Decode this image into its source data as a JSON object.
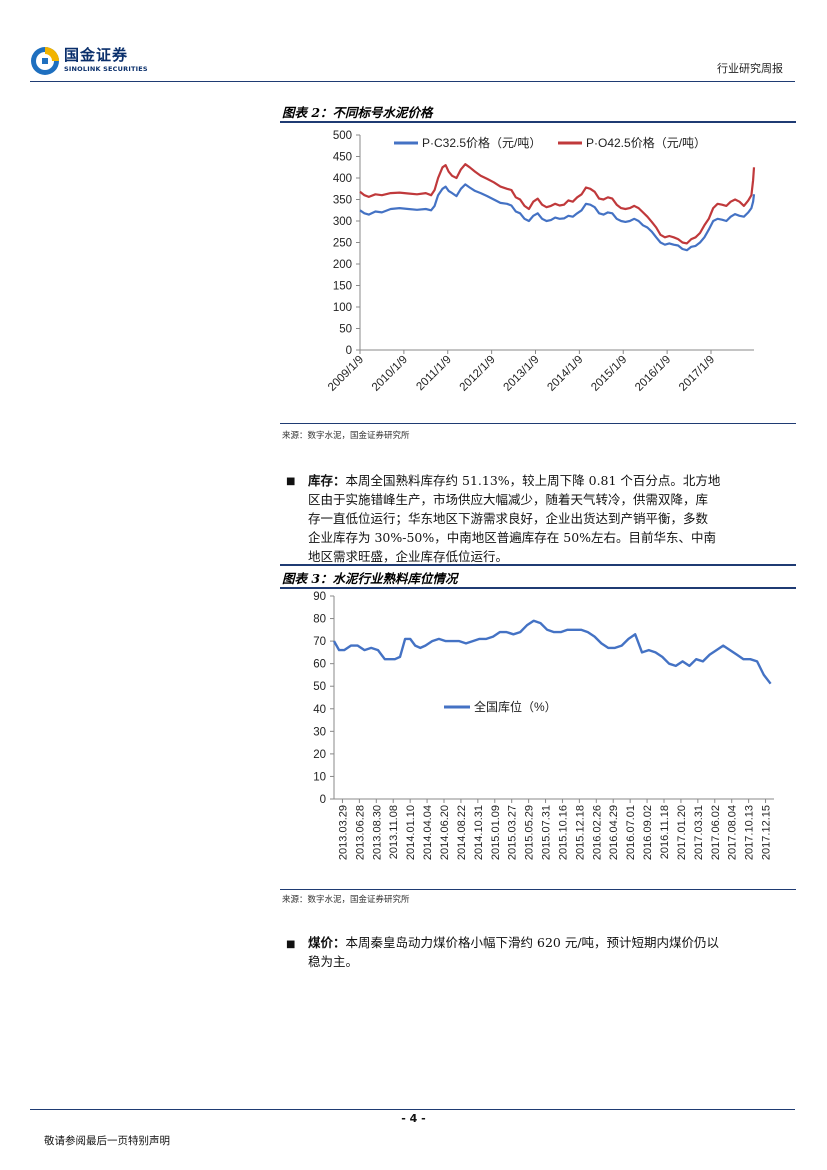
{
  "header": {
    "logo_cn": "国金证券",
    "logo_en": "SINOLINK SECURITIES",
    "report_type": "行业研究周报"
  },
  "figure2": {
    "title": "图表 2：不同标号水泥价格",
    "source": "来源：数字水泥，国金证券研究所"
  },
  "figure3": {
    "title": "图表 3：水泥行业熟料库位情况",
    "source": "来源：数字水泥，国金证券研究所"
  },
  "paragraphs": {
    "inventory_label": "库存：",
    "inventory_lines": [
      "本周全国熟料库存约 51.13%，较上周下降 0.81 个百分点。北方地",
      "区由于实施错峰生产，市场供应大幅减少，随着天气转冷，供需双降，库",
      "存一直低位运行；华东地区下游需求良好，企业出货达到产销平衡，多数",
      "企业库存为 30%-50%，中南地区普遍库存在 50%左右。目前华东、中南",
      "地区需求旺盛，企业库存低位运行。"
    ],
    "coal_label": "煤价：",
    "coal_lines": [
      "本周秦皇岛动力煤价格小幅下滑约 620 元/吨，预计短期内煤价仍以",
      "稳为主。"
    ]
  },
  "footer": {
    "page": "- 4 -",
    "note": "敬请参阅最后一页特别声明"
  },
  "chart_data": [
    {
      "type": "line",
      "title": "不同标号水泥价格",
      "x_tick_labels": [
        "2009/1/9",
        "2010/1/9",
        "2011/1/9",
        "2012/1/9",
        "2013/1/9",
        "2014/1/9",
        "2015/1/9",
        "2016/1/9",
        "2017/1/9"
      ],
      "x_range": [
        2009.0,
        2017.98
      ],
      "ylim": [
        0,
        500
      ],
      "y_ticks": [
        0,
        50,
        100,
        150,
        200,
        250,
        300,
        350,
        400,
        450,
        500
      ],
      "legend_position": "top",
      "series": [
        {
          "name": "P·C32.5价格（元/吨）",
          "color": "#4472c4",
          "x": [
            2009.0,
            2009.1,
            2009.2,
            2009.35,
            2009.5,
            2009.7,
            2009.9,
            2010.1,
            2010.3,
            2010.5,
            2010.62,
            2010.7,
            2010.78,
            2010.88,
            2010.95,
            2011.02,
            2011.1,
            2011.2,
            2011.3,
            2011.4,
            2011.5,
            2011.62,
            2011.75,
            2011.9,
            2012.05,
            2012.2,
            2012.35,
            2012.45,
            2012.55,
            2012.65,
            2012.75,
            2012.85,
            2012.95,
            2013.05,
            2013.15,
            2013.25,
            2013.35,
            2013.45,
            2013.55,
            2013.65,
            2013.75,
            2013.85,
            2013.95,
            2014.05,
            2014.15,
            2014.25,
            2014.35,
            2014.45,
            2014.55,
            2014.65,
            2014.75,
            2014.85,
            2014.95,
            2015.05,
            2015.15,
            2015.25,
            2015.35,
            2015.45,
            2015.55,
            2015.65,
            2015.75,
            2015.85,
            2015.95,
            2016.05,
            2016.15,
            2016.25,
            2016.35,
            2016.45,
            2016.55,
            2016.65,
            2016.75,
            2016.85,
            2016.95,
            2017.05,
            2017.15,
            2017.25,
            2017.35,
            2017.45,
            2017.55,
            2017.65,
            2017.75,
            2017.85,
            2017.92,
            2017.96,
            2017.98
          ],
          "values": [
            325,
            318,
            315,
            322,
            320,
            328,
            330,
            328,
            326,
            328,
            325,
            335,
            360,
            375,
            380,
            370,
            365,
            358,
            375,
            385,
            378,
            370,
            365,
            358,
            350,
            342,
            340,
            336,
            322,
            318,
            305,
            300,
            312,
            318,
            305,
            300,
            302,
            308,
            305,
            306,
            312,
            310,
            318,
            325,
            340,
            338,
            332,
            318,
            315,
            320,
            318,
            305,
            300,
            298,
            300,
            305,
            300,
            290,
            285,
            275,
            262,
            250,
            245,
            248,
            245,
            243,
            235,
            232,
            240,
            242,
            250,
            262,
            280,
            300,
            305,
            303,
            300,
            310,
            316,
            312,
            310,
            320,
            330,
            345,
            362
          ]
        },
        {
          "name": "P·O42.5价格（元/吨）",
          "color": "#c0393b",
          "x": [
            2009.0,
            2009.1,
            2009.2,
            2009.35,
            2009.5,
            2009.7,
            2009.9,
            2010.1,
            2010.3,
            2010.5,
            2010.62,
            2010.7,
            2010.78,
            2010.88,
            2010.95,
            2011.02,
            2011.1,
            2011.2,
            2011.3,
            2011.4,
            2011.5,
            2011.62,
            2011.75,
            2011.9,
            2012.05,
            2012.2,
            2012.35,
            2012.45,
            2012.55,
            2012.65,
            2012.75,
            2012.85,
            2012.95,
            2013.05,
            2013.15,
            2013.25,
            2013.35,
            2013.45,
            2013.55,
            2013.65,
            2013.75,
            2013.85,
            2013.95,
            2014.05,
            2014.15,
            2014.25,
            2014.35,
            2014.45,
            2014.55,
            2014.65,
            2014.75,
            2014.85,
            2014.95,
            2015.05,
            2015.15,
            2015.25,
            2015.35,
            2015.45,
            2015.55,
            2015.65,
            2015.75,
            2015.85,
            2015.95,
            2016.05,
            2016.15,
            2016.25,
            2016.35,
            2016.45,
            2016.55,
            2016.65,
            2016.75,
            2016.85,
            2016.95,
            2017.05,
            2017.15,
            2017.25,
            2017.35,
            2017.45,
            2017.55,
            2017.65,
            2017.75,
            2017.85,
            2017.92,
            2017.96,
            2017.98
          ],
          "values": [
            368,
            360,
            356,
            362,
            360,
            365,
            366,
            364,
            362,
            365,
            360,
            372,
            400,
            425,
            430,
            415,
            405,
            400,
            420,
            432,
            425,
            415,
            405,
            398,
            390,
            380,
            375,
            372,
            355,
            350,
            335,
            328,
            345,
            352,
            338,
            332,
            335,
            340,
            336,
            338,
            348,
            345,
            355,
            362,
            378,
            375,
            368,
            352,
            350,
            355,
            352,
            338,
            330,
            328,
            330,
            335,
            330,
            320,
            310,
            298,
            285,
            268,
            262,
            265,
            262,
            258,
            250,
            248,
            258,
            262,
            272,
            290,
            305,
            330,
            340,
            338,
            335,
            345,
            350,
            345,
            335,
            348,
            360,
            395,
            425
          ]
        }
      ]
    },
    {
      "type": "line",
      "title": "水泥行业熟料库位情况",
      "x_tick_labels": [
        "2013.03.29",
        "2013.06.28",
        "2013.08.30",
        "2013.11.08",
        "2014.01.10",
        "2014.04.04",
        "2014.06.20",
        "2014.08.22",
        "2014.10.31",
        "2015.01.09",
        "2015.03.27",
        "2015.05.29",
        "2015.07.31",
        "2015.10.16",
        "2015.12.18",
        "2016.02.26",
        "2016.04.29",
        "2016.07.01",
        "2016.09.02",
        "2016.11.18",
        "2017.01.20",
        "2017.03.31",
        "2017.06.02",
        "2017.08.04",
        "2017.10.13",
        "2017.12.15"
      ],
      "x_range": [
        0,
        26
      ],
      "ylim": [
        0,
        90
      ],
      "y_ticks": [
        0,
        10,
        20,
        30,
        40,
        50,
        60,
        70,
        80,
        90
      ],
      "legend_position": "center",
      "series": [
        {
          "name": "全国库位（%）",
          "color": "#4472c4",
          "x": [
            0,
            0.3,
            0.6,
            1.0,
            1.4,
            1.8,
            2.2,
            2.6,
            3.0,
            3.3,
            3.6,
            3.9,
            4.2,
            4.5,
            4.8,
            5.1,
            5.4,
            5.8,
            6.2,
            6.6,
            7.0,
            7.4,
            7.8,
            8.2,
            8.6,
            9.0,
            9.4,
            9.8,
            10.2,
            10.6,
            11.0,
            11.4,
            11.8,
            12.2,
            12.6,
            13.0,
            13.4,
            13.8,
            14.2,
            14.6,
            15.0,
            15.4,
            15.8,
            16.2,
            16.6,
            17.0,
            17.4,
            17.8,
            18.2,
            18.6,
            19.0,
            19.4,
            19.8,
            20.2,
            20.6,
            21.0,
            21.4,
            21.8,
            22.2,
            22.6,
            23.0,
            23.4,
            23.8,
            24.2,
            24.6,
            25.0,
            25.4,
            25.8
          ],
          "values": [
            70,
            66,
            66,
            68,
            68,
            66,
            67,
            66,
            62,
            62,
            62,
            63,
            71,
            71,
            68,
            67,
            68,
            70,
            71,
            70,
            70,
            70,
            69,
            70,
            71,
            71,
            72,
            74,
            74,
            73,
            74,
            77,
            79,
            78,
            75,
            74,
            74,
            75,
            75,
            75,
            74,
            72,
            69,
            67,
            67,
            68,
            71,
            73,
            65,
            66,
            65,
            63,
            60,
            59,
            61,
            59,
            62,
            61,
            64,
            66,
            68,
            66,
            64,
            62,
            62,
            61,
            55,
            51.13
          ]
        }
      ]
    }
  ]
}
